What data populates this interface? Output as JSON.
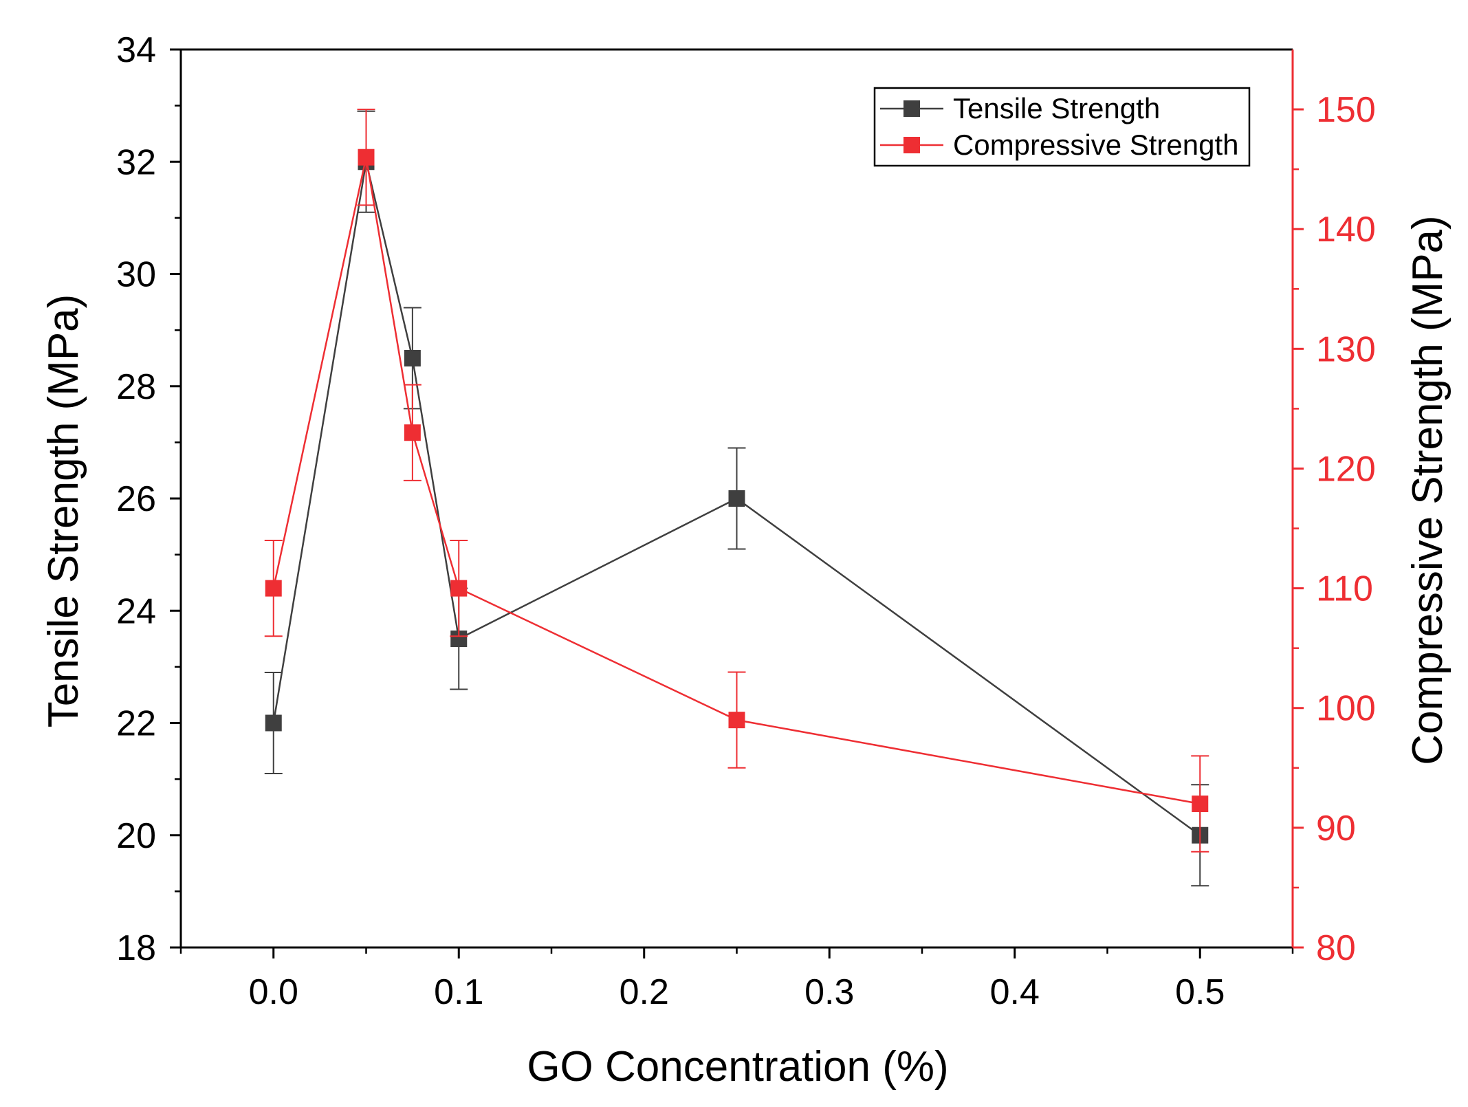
{
  "chart_data": {
    "type": "line",
    "xlabel": "GO Concentration (%)",
    "ylabel_left": "Tensile Strength (MPa)",
    "ylabel_right": "Compressive Strength (MPa)",
    "xlim": [
      -0.05,
      0.55
    ],
    "xticks": [
      0.0,
      0.1,
      0.2,
      0.3,
      0.4,
      0.5
    ],
    "xtick_labels": [
      "0.0",
      "0.1",
      "0.2",
      "0.3",
      "0.4",
      "0.5"
    ],
    "xminor": [
      -0.05,
      0.05,
      0.15,
      0.25,
      0.35,
      0.45,
      0.55
    ],
    "ylim_left": [
      18,
      34
    ],
    "yticks_left": [
      18,
      20,
      22,
      24,
      26,
      28,
      30,
      32,
      34
    ],
    "ytick_labels_left": [
      "18",
      "20",
      "22",
      "24",
      "26",
      "28",
      "30",
      "32",
      "34"
    ],
    "yminor_left": [
      19,
      21,
      23,
      25,
      27,
      29,
      31,
      33
    ],
    "ylim_right": [
      80,
      155
    ],
    "yticks_right": [
      80,
      90,
      100,
      110,
      120,
      130,
      140,
      150
    ],
    "ytick_labels_right": [
      "80",
      "90",
      "100",
      "110",
      "120",
      "130",
      "140",
      "150"
    ],
    "yminor_right": [
      85,
      95,
      105,
      115,
      125,
      135,
      145
    ],
    "legend_position": "top-right",
    "series": [
      {
        "name": "Tensile Strength",
        "axis": "left",
        "color": "#3f3f3f",
        "x": [
          0.0,
          0.05,
          0.075,
          0.1,
          0.25,
          0.5
        ],
        "y": [
          22.0,
          32.0,
          28.5,
          23.5,
          26.0,
          20.0
        ],
        "err": [
          0.9,
          0.9,
          0.9,
          0.9,
          0.9,
          0.9
        ]
      },
      {
        "name": "Compressive Strength",
        "axis": "right",
        "color": "#ee2e33",
        "x": [
          0.0,
          0.05,
          0.075,
          0.1,
          0.25,
          0.5
        ],
        "y": [
          110.0,
          146.0,
          123.0,
          110.0,
          99.0,
          92.0
        ],
        "err": [
          4.0,
          4.0,
          4.0,
          4.0,
          4.0,
          4.0
        ]
      }
    ]
  }
}
